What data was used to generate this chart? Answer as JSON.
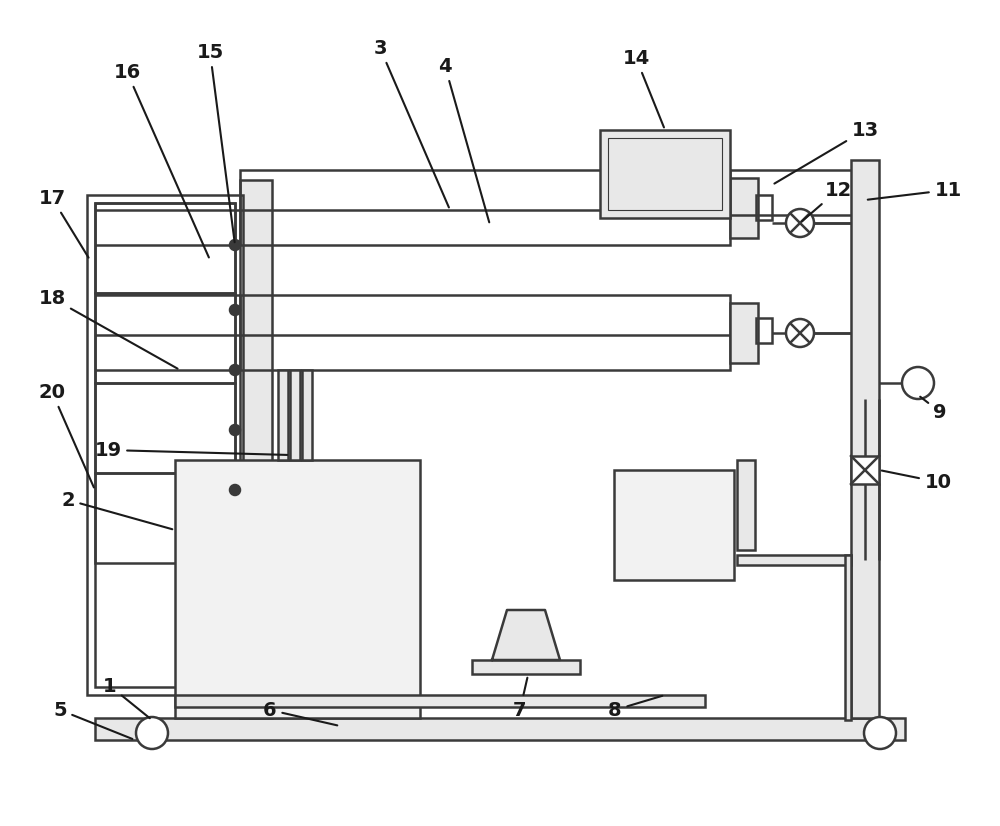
{
  "bg": "#ffffff",
  "lc": "#3a3a3a",
  "lw": 1.8,
  "fs": 14,
  "fc": "#1a1a1a",
  "gray1": "#c8c8c8",
  "gray2": "#e8e8e8",
  "gray3": "#f2f2f2"
}
